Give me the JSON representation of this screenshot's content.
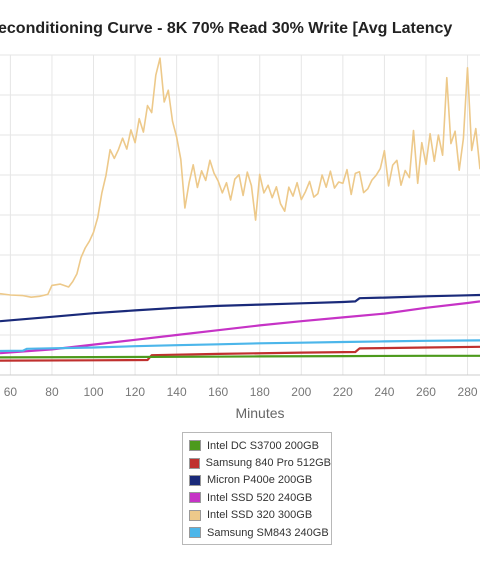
{
  "chart_data": {
    "type": "line",
    "title": "econditioning Curve - 8K 70% Read 30% Write [Avg Latency",
    "xlabel": "Minutes",
    "ylabel": "",
    "xlim": [
      55,
      286
    ],
    "ylim": [
      0,
      100
    ],
    "x_ticks": [
      "60",
      "80",
      "100",
      "120",
      "140",
      "160",
      "180",
      "200",
      "220",
      "240",
      "260",
      "280"
    ],
    "grid": true,
    "legend_position": "bottom",
    "series": [
      {
        "name": "Intel DC S3700 200GB",
        "color": "#4c9a1c",
        "x": [
          55,
          100,
          140,
          180,
          220,
          260,
          286
        ],
        "y": [
          5.5,
          5.6,
          5.7,
          5.8,
          5.9,
          6.0,
          6.0
        ]
      },
      {
        "name": "Samsung 840 Pro 512GB",
        "color": "#c0302e",
        "x": [
          55,
          100,
          126,
          128,
          160,
          200,
          226,
          228,
          260,
          286
        ],
        "y": [
          4.5,
          4.6,
          4.7,
          6.2,
          6.6,
          7.0,
          7.2,
          8.3,
          8.6,
          8.8
        ]
      },
      {
        "name": "Micron P400e 200GB",
        "color": "#1a2a7a",
        "x": [
          55,
          80,
          100,
          120,
          140,
          160,
          180,
          200,
          220,
          226,
          228,
          240,
          260,
          280,
          286
        ],
        "y": [
          16.8,
          18.2,
          19.3,
          20.2,
          21.0,
          21.6,
          22.0,
          22.4,
          22.8,
          23.0,
          24.0,
          24.2,
          24.6,
          24.9,
          25.0
        ]
      },
      {
        "name": "Intel SSD 520 240GB",
        "color": "#c633c6",
        "x": [
          55,
          80,
          100,
          120,
          140,
          160,
          180,
          200,
          220,
          240,
          260,
          280,
          286
        ],
        "y": [
          6.8,
          8.0,
          9.5,
          11.0,
          12.5,
          14.0,
          15.5,
          16.8,
          18.0,
          19.2,
          21.0,
          22.5,
          23.0
        ]
      },
      {
        "name": "Intel SSD 320 300GB",
        "color": "#edc98a",
        "x": [
          55,
          60,
          66,
          70,
          74,
          78,
          80,
          84,
          88,
          90,
          92,
          94,
          96,
          98,
          100,
          102,
          104,
          106,
          108,
          110,
          112,
          114,
          116,
          118,
          120,
          122,
          124,
          126,
          128,
          130,
          132,
          134,
          136,
          138,
          140,
          142,
          144,
          146,
          148,
          150,
          152,
          154,
          156,
          158,
          160,
          162,
          164,
          166,
          168,
          170,
          172,
          174,
          176,
          178,
          180,
          182,
          184,
          186,
          188,
          190,
          192,
          194,
          196,
          198,
          200,
          202,
          204,
          206,
          208,
          210,
          212,
          214,
          216,
          218,
          220,
          222,
          224,
          226,
          228,
          230,
          232,
          234,
          236,
          238,
          240,
          242,
          244,
          246,
          248,
          250,
          252,
          254,
          256,
          258,
          260,
          262,
          264,
          266,
          268,
          270,
          272,
          274,
          276,
          278,
          280,
          282,
          284,
          286
        ],
        "y": [
          25.4,
          25.0,
          24.8,
          24.3,
          24.6,
          25.2,
          28.0,
          28.4,
          27.5,
          29.2,
          31.6,
          36.7,
          39.7,
          41.8,
          44.6,
          49.2,
          56.8,
          62.4,
          70.4,
          67.7,
          70.4,
          74.0,
          70.6,
          76.6,
          72.6,
          80.1,
          75.9,
          84.2,
          82.0,
          93.7,
          99.0,
          85.3,
          89.0,
          79.3,
          74.4,
          67.4,
          52.2,
          60.1,
          65.7,
          58.6,
          63.8,
          60.8,
          67.1,
          63.1,
          60.6,
          56.9,
          60.1,
          54.7,
          61.2,
          62.6,
          56.1,
          63.4,
          59.2,
          48.4,
          62.7,
          56.9,
          59.3,
          55.4,
          58.8,
          53.5,
          51.2,
          58.7,
          55.9,
          60.1,
          54.8,
          57.3,
          60.5,
          55.6,
          56.7,
          62.5,
          58.7,
          63.7,
          58.4,
          60.3,
          59.9,
          64.2,
          56.4,
          63.0,
          63.5,
          57.0,
          58.2,
          60.9,
          62.4,
          64.5,
          70.1,
          59.1,
          65.6,
          67.1,
          59.3,
          63.9,
          61.7,
          76.4,
          59.9,
          72.6,
          65.8,
          75.4,
          66.8,
          75.0,
          68.7,
          92.9,
          72.3,
          76.2,
          64.0,
          73.9,
          96.0,
          70.2,
          77.0,
          64.3
        ]
      },
      {
        "name": "Samsung SM843 240GB",
        "color": "#4cb6ea",
        "x": [
          55,
          66,
          68,
          100,
          120,
          140,
          160,
          180,
          200,
          220,
          240,
          260,
          286
        ],
        "y": [
          7.5,
          7.6,
          8.2,
          8.6,
          9.0,
          9.3,
          9.6,
          9.9,
          10.1,
          10.3,
          10.5,
          10.7,
          10.8
        ]
      }
    ]
  }
}
